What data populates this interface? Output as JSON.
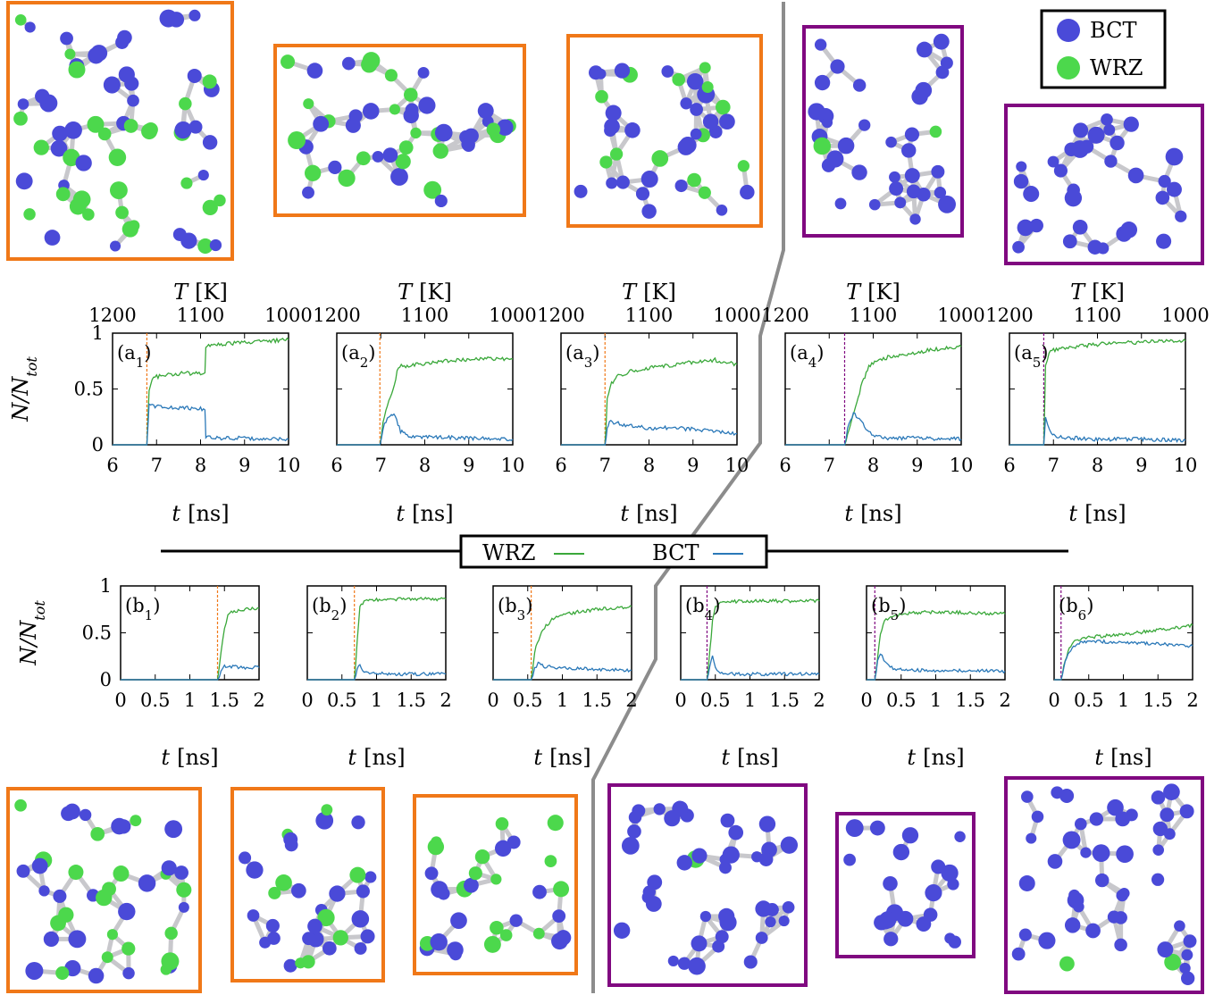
{
  "legend_top": {
    "items": [
      {
        "label": "BCT",
        "color": "#4a4ad8"
      },
      {
        "label": "WRZ",
        "color": "#4cd84c"
      }
    ]
  },
  "legend_mid": {
    "items": [
      {
        "label": "WRZ",
        "color": "#3aa83a"
      },
      {
        "label": "BCT",
        "color": "#2a78b8"
      }
    ]
  },
  "colors": {
    "wrz_line": "#3aa83a",
    "bct_line": "#2a78b8",
    "orange": "#f07818",
    "purple": "#800880",
    "divider": "#8c8c8c"
  },
  "chart_data": [
    {
      "id": "a1",
      "type": "line",
      "label": "(a1)",
      "label_main": "(a",
      "label_sub": "1",
      "label_close": ")",
      "xlabel": "t [ns]",
      "xlabel_var": "t",
      "xlabel_unit": "[ns]",
      "ylabel": "N/N_tot",
      "xlim": [
        6,
        10
      ],
      "ylim": [
        0,
        1
      ],
      "xticks": [
        "6",
        "7",
        "8",
        "9",
        "10"
      ],
      "yticks": [
        "0",
        "0.5",
        "1"
      ],
      "top_axis": {
        "label": "T [K]",
        "var": "T",
        "unit": "[K]",
        "ticks": [
          "1200",
          "1100",
          "1000"
        ],
        "values": [
          1200,
          1100,
          1000
        ]
      },
      "onset_line": {
        "x": 6.78,
        "color": "orange"
      },
      "series": [
        {
          "name": "WRZ",
          "x": [
            6.78,
            6.83,
            6.9,
            7.0,
            7.3,
            7.6,
            7.9,
            8.1,
            8.12,
            8.5,
            9.0,
            9.5,
            10.0
          ],
          "y": [
            0.0,
            0.5,
            0.58,
            0.61,
            0.63,
            0.64,
            0.64,
            0.64,
            0.88,
            0.9,
            0.92,
            0.93,
            0.94
          ]
        },
        {
          "name": "BCT",
          "x": [
            6.78,
            6.83,
            6.9,
            7.2,
            7.6,
            8.1,
            8.12,
            8.5,
            9.0,
            9.5,
            10.0
          ],
          "y": [
            0.0,
            0.36,
            0.35,
            0.34,
            0.33,
            0.32,
            0.07,
            0.06,
            0.06,
            0.05,
            0.05
          ]
        }
      ]
    },
    {
      "id": "a2",
      "type": "line",
      "label": "(a2)",
      "label_main": "(a",
      "label_sub": "2",
      "label_close": ")",
      "xlabel": "t [ns]",
      "xlabel_var": "t",
      "xlabel_unit": "[ns]",
      "ylabel": "",
      "xlim": [
        6,
        10
      ],
      "ylim": [
        0,
        1
      ],
      "xticks": [
        "6",
        "7",
        "8",
        "9",
        "10"
      ],
      "yticks": [],
      "top_axis": {
        "label": "T [K]",
        "var": "T",
        "unit": "[K]",
        "ticks": [
          "1200",
          "1100",
          "1000"
        ],
        "values": [
          1200,
          1100,
          1000
        ]
      },
      "onset_line": {
        "x": 6.98,
        "color": "orange"
      },
      "series": [
        {
          "name": "WRZ",
          "x": [
            6.98,
            7.05,
            7.15,
            7.25,
            7.4,
            7.8,
            8.5,
            9.0,
            9.5,
            10.0
          ],
          "y": [
            0.0,
            0.2,
            0.35,
            0.45,
            0.7,
            0.72,
            0.75,
            0.76,
            0.77,
            0.77
          ]
        },
        {
          "name": "BCT",
          "x": [
            6.98,
            7.05,
            7.15,
            7.3,
            7.45,
            7.6,
            8.0,
            9.0,
            10.0
          ],
          "y": [
            0.0,
            0.15,
            0.25,
            0.28,
            0.12,
            0.08,
            0.07,
            0.06,
            0.05
          ]
        }
      ]
    },
    {
      "id": "a3",
      "type": "line",
      "label": "(a3)",
      "label_main": "(a",
      "label_sub": "3",
      "label_close": ")",
      "xlabel": "t [ns]",
      "xlabel_var": "t",
      "xlabel_unit": "[ns]",
      "ylabel": "",
      "xlim": [
        6,
        10
      ],
      "ylim": [
        0,
        1
      ],
      "xticks": [
        "6",
        "7",
        "8",
        "9",
        "10"
      ],
      "yticks": [],
      "top_axis": {
        "label": "T [K]",
        "var": "T",
        "unit": "[K]",
        "ticks": [
          "1200",
          "1100",
          "1000"
        ],
        "values": [
          1200,
          1100,
          1000
        ]
      },
      "onset_line": {
        "x": 7.0,
        "color": "orange"
      },
      "series": [
        {
          "name": "WRZ",
          "x": [
            7.0,
            7.05,
            7.15,
            7.3,
            7.6,
            8.0,
            8.5,
            9.0,
            9.5,
            10.0
          ],
          "y": [
            0.0,
            0.4,
            0.55,
            0.62,
            0.66,
            0.69,
            0.71,
            0.74,
            0.76,
            0.72
          ]
        },
        {
          "name": "BCT",
          "x": [
            7.0,
            7.05,
            7.1,
            7.2,
            7.5,
            8.0,
            8.5,
            9.0,
            9.5,
            10.0
          ],
          "y": [
            0.0,
            0.15,
            0.22,
            0.2,
            0.17,
            0.15,
            0.15,
            0.14,
            0.12,
            0.1
          ]
        }
      ]
    },
    {
      "id": "a4",
      "type": "line",
      "label": "(a4)",
      "label_main": "(a",
      "label_sub": "4",
      "label_close": ")",
      "xlabel": "t [ns]",
      "xlabel_var": "t",
      "xlabel_unit": "[ns]",
      "ylabel": "",
      "xlim": [
        6,
        10
      ],
      "ylim": [
        0,
        1
      ],
      "xticks": [
        "6",
        "7",
        "8",
        "9",
        "10"
      ],
      "yticks": [],
      "top_axis": {
        "label": "T [K]",
        "var": "T",
        "unit": "[K]",
        "ticks": [
          "1200",
          "1100",
          "1000"
        ],
        "values": [
          1200,
          1100,
          1000
        ]
      },
      "onset_line": {
        "x": 7.35,
        "color": "purple"
      },
      "series": [
        {
          "name": "WRZ",
          "x": [
            7.35,
            7.45,
            7.6,
            7.75,
            7.9,
            8.1,
            8.5,
            9.0,
            9.5,
            10.0
          ],
          "y": [
            0.0,
            0.15,
            0.35,
            0.55,
            0.7,
            0.76,
            0.8,
            0.83,
            0.86,
            0.88
          ]
        },
        {
          "name": "BCT",
          "x": [
            7.35,
            7.45,
            7.55,
            7.65,
            7.8,
            8.0,
            8.3,
            9.0,
            10.0
          ],
          "y": [
            0.0,
            0.2,
            0.28,
            0.25,
            0.16,
            0.08,
            0.06,
            0.06,
            0.05
          ]
        }
      ]
    },
    {
      "id": "a5",
      "type": "line",
      "label": "(a5)",
      "label_main": "(a",
      "label_sub": "5",
      "label_close": ")",
      "xlabel": "t [ns]",
      "xlabel_var": "t",
      "xlabel_unit": "[ns]",
      "ylabel": "",
      "xlim": [
        6,
        10
      ],
      "ylim": [
        0,
        1
      ],
      "xticks": [
        "6",
        "7",
        "8",
        "9",
        "10"
      ],
      "yticks": [],
      "top_axis": {
        "label": "T [K]",
        "var": "T",
        "unit": "[K]",
        "ticks": [
          "1200",
          "1100",
          "1000"
        ],
        "values": [
          1200,
          1100,
          1000
        ]
      },
      "onset_line": {
        "x": 6.78,
        "color": "purple"
      },
      "series": [
        {
          "name": "WRZ",
          "x": [
            6.78,
            6.82,
            6.9,
            7.1,
            7.5,
            8.0,
            8.5,
            9.0,
            9.5,
            10.0
          ],
          "y": [
            0.0,
            0.7,
            0.83,
            0.86,
            0.88,
            0.9,
            0.91,
            0.92,
            0.93,
            0.93
          ]
        },
        {
          "name": "BCT",
          "x": [
            6.78,
            6.82,
            6.87,
            6.95,
            7.1,
            7.5,
            8.0,
            9.0,
            10.0
          ],
          "y": [
            0.0,
            0.25,
            0.18,
            0.09,
            0.07,
            0.06,
            0.05,
            0.05,
            0.04
          ]
        }
      ]
    },
    {
      "id": "b1",
      "type": "line",
      "label": "(b1)",
      "label_main": "(b",
      "label_sub": "1",
      "label_close": ")",
      "xlabel": "t [ns]",
      "xlabel_var": "t",
      "xlabel_unit": "[ns]",
      "ylabel": "N/N_tot",
      "xlim": [
        0,
        2
      ],
      "ylim": [
        0,
        1
      ],
      "xticks": [
        "0",
        "0.5",
        "1",
        "1.5",
        "2"
      ],
      "yticks": [
        "0",
        "0.5",
        "1"
      ],
      "onset_line": {
        "x": 1.4,
        "color": "orange"
      },
      "series": [
        {
          "name": "WRZ",
          "x": [
            0.0,
            1.4,
            1.45,
            1.5,
            1.55,
            1.6,
            1.7,
            1.8,
            2.0
          ],
          "y": [
            0.0,
            0.0,
            0.3,
            0.55,
            0.68,
            0.72,
            0.74,
            0.75,
            0.76
          ]
        },
        {
          "name": "BCT",
          "x": [
            0.0,
            1.4,
            1.45,
            1.5,
            1.6,
            1.8,
            2.0
          ],
          "y": [
            0.0,
            0.0,
            0.08,
            0.15,
            0.14,
            0.13,
            0.13
          ]
        }
      ]
    },
    {
      "id": "b2",
      "type": "line",
      "label": "(b2)",
      "label_main": "(b",
      "label_sub": "2",
      "label_close": ")",
      "xlabel": "t [ns]",
      "xlabel_var": "t",
      "xlabel_unit": "[ns]",
      "ylabel": "",
      "xlim": [
        0,
        2
      ],
      "ylim": [
        0,
        1
      ],
      "xticks": [
        "0",
        "0.5",
        "1",
        "1.5",
        "2"
      ],
      "yticks": [],
      "onset_line": {
        "x": 0.68,
        "color": "orange"
      },
      "series": [
        {
          "name": "WRZ",
          "x": [
            0.0,
            0.68,
            0.72,
            0.76,
            0.82,
            0.9,
            1.2,
            1.6,
            2.0
          ],
          "y": [
            0.0,
            0.0,
            0.4,
            0.78,
            0.84,
            0.85,
            0.86,
            0.86,
            0.86
          ]
        },
        {
          "name": "BCT",
          "x": [
            0.0,
            0.68,
            0.72,
            0.76,
            0.8,
            0.9,
            1.2,
            1.6,
            2.0
          ],
          "y": [
            0.0,
            0.0,
            0.12,
            0.15,
            0.1,
            0.07,
            0.06,
            0.06,
            0.06
          ]
        }
      ]
    },
    {
      "id": "b3",
      "type": "line",
      "label": "(b3)",
      "label_main": "(b",
      "label_sub": "3",
      "label_close": ")",
      "xlabel": "t [ns]",
      "xlabel_var": "t",
      "xlabel_unit": "[ns]",
      "ylabel": "",
      "xlim": [
        0,
        2
      ],
      "ylim": [
        0,
        1
      ],
      "xticks": [
        "0",
        "0.5",
        "1",
        "1.5",
        "2"
      ],
      "yticks": [],
      "onset_line": {
        "x": 0.55,
        "color": "orange"
      },
      "series": [
        {
          "name": "WRZ",
          "x": [
            0.0,
            0.55,
            0.6,
            0.7,
            0.85,
            1.0,
            1.2,
            1.5,
            1.8,
            2.0
          ],
          "y": [
            0.0,
            0.0,
            0.3,
            0.52,
            0.64,
            0.69,
            0.72,
            0.75,
            0.77,
            0.78
          ]
        },
        {
          "name": "BCT",
          "x": [
            0.0,
            0.55,
            0.6,
            0.65,
            0.75,
            0.9,
            1.2,
            1.6,
            2.0
          ],
          "y": [
            0.0,
            0.0,
            0.12,
            0.17,
            0.14,
            0.13,
            0.12,
            0.11,
            0.1
          ]
        }
      ]
    },
    {
      "id": "b4",
      "type": "line",
      "label": "(b4)",
      "label_main": "(b",
      "label_sub": "4",
      "label_close": ")",
      "xlabel": "t [ns]",
      "xlabel_var": "t",
      "xlabel_unit": "[ns]",
      "ylabel": "",
      "xlim": [
        0,
        2
      ],
      "ylim": [
        0,
        1
      ],
      "xticks": [
        "0",
        "0.5",
        "1",
        "1.5",
        "2"
      ],
      "yticks": [],
      "onset_line": {
        "x": 0.38,
        "color": "purple"
      },
      "series": [
        {
          "name": "WRZ",
          "x": [
            0.0,
            0.38,
            0.42,
            0.46,
            0.5,
            0.55,
            0.7,
            1.0,
            1.5,
            2.0
          ],
          "y": [
            0.0,
            0.0,
            0.3,
            0.62,
            0.78,
            0.82,
            0.83,
            0.84,
            0.84,
            0.84
          ]
        },
        {
          "name": "BCT",
          "x": [
            0.0,
            0.38,
            0.42,
            0.46,
            0.5,
            0.55,
            0.7,
            1.0,
            2.0
          ],
          "y": [
            0.0,
            0.0,
            0.15,
            0.27,
            0.12,
            0.07,
            0.06,
            0.06,
            0.06
          ]
        }
      ]
    },
    {
      "id": "b5",
      "type": "line",
      "label": "(b5)",
      "label_main": "(b",
      "label_sub": "5",
      "label_close": ")",
      "xlabel": "t [ns]",
      "xlabel_var": "t",
      "xlabel_unit": "[ns]",
      "ylabel": "",
      "xlim": [
        0,
        2
      ],
      "ylim": [
        0,
        1
      ],
      "xticks": [
        "0",
        "0.5",
        "1",
        "1.5",
        "2"
      ],
      "yticks": [],
      "onset_line": {
        "x": 0.12,
        "color": "purple"
      },
      "series": [
        {
          "name": "WRZ",
          "x": [
            0.0,
            0.12,
            0.16,
            0.2,
            0.26,
            0.35,
            0.5,
            0.8,
            1.2,
            1.6,
            2.0
          ],
          "y": [
            0.0,
            0.0,
            0.25,
            0.5,
            0.62,
            0.68,
            0.7,
            0.72,
            0.72,
            0.71,
            0.7
          ]
        },
        {
          "name": "BCT",
          "x": [
            0.0,
            0.12,
            0.16,
            0.2,
            0.25,
            0.32,
            0.45,
            0.8,
            1.2,
            2.0
          ],
          "y": [
            0.0,
            0.0,
            0.2,
            0.28,
            0.22,
            0.14,
            0.11,
            0.1,
            0.1,
            0.09
          ]
        }
      ]
    },
    {
      "id": "b6",
      "type": "line",
      "label": "(b6)",
      "label_main": "(b",
      "label_sub": "6",
      "label_close": ")",
      "xlabel": "t [ns]",
      "xlabel_var": "t",
      "xlabel_unit": "[ns]",
      "ylabel": "",
      "xlim": [
        0,
        2
      ],
      "ylim": [
        0,
        1
      ],
      "xticks": [
        "0",
        "0.5",
        "1",
        "1.5",
        "2"
      ],
      "yticks": [],
      "onset_line": {
        "x": 0.1,
        "color": "purple"
      },
      "series": [
        {
          "name": "WRZ",
          "x": [
            0.0,
            0.1,
            0.14,
            0.2,
            0.28,
            0.4,
            0.6,
            0.9,
            1.2,
            1.5,
            1.8,
            2.0
          ],
          "y": [
            0.0,
            0.0,
            0.15,
            0.3,
            0.4,
            0.44,
            0.46,
            0.48,
            0.5,
            0.53,
            0.56,
            0.58
          ]
        },
        {
          "name": "BCT",
          "x": [
            0.0,
            0.1,
            0.14,
            0.2,
            0.28,
            0.4,
            0.6,
            0.9,
            1.2,
            1.5,
            1.8,
            2.0
          ],
          "y": [
            0.0,
            0.0,
            0.14,
            0.28,
            0.36,
            0.4,
            0.41,
            0.4,
            0.39,
            0.38,
            0.37,
            0.36
          ]
        }
      ]
    }
  ]
}
